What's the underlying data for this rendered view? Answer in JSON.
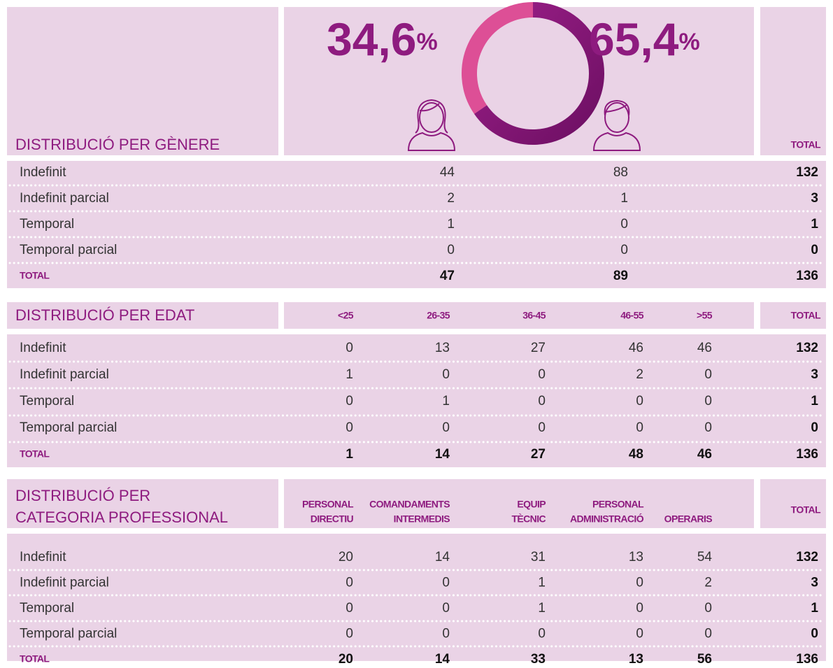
{
  "unit": "%",
  "gender": {
    "title": "DISTRIBUCIÓ PER GÈNERE",
    "female": {
      "value": 34.6,
      "label": "34,6"
    },
    "male": {
      "value": 65.4,
      "label": "65,4"
    },
    "total_header": "TOTAL",
    "rows": [
      {
        "label": "Indefinit",
        "values": [
          44,
          88
        ],
        "total": 132
      },
      {
        "label": "Indefinit parcial",
        "values": [
          2,
          1
        ],
        "total": 3
      },
      {
        "label": "Temporal",
        "values": [
          1,
          0
        ],
        "total": 1
      },
      {
        "label": "Temporal parcial",
        "values": [
          0,
          0
        ],
        "total": 0
      }
    ],
    "total_row": {
      "label": "TOTAL",
      "values": [
        47,
        89
      ],
      "total": 136
    }
  },
  "age": {
    "title": "DISTRIBUCIÓ PER EDAT",
    "columns": [
      "<25",
      "26-35",
      "36-45",
      "46-55",
      ">55"
    ],
    "total_header": "TOTAL",
    "rows": [
      {
        "label": "Indefinit",
        "values": [
          0,
          13,
          27,
          46,
          46
        ],
        "total": 132
      },
      {
        "label": "Indefinit parcial",
        "values": [
          1,
          0,
          0,
          2,
          0
        ],
        "total": 3
      },
      {
        "label": "Temporal",
        "values": [
          0,
          1,
          0,
          0,
          0
        ],
        "total": 1
      },
      {
        "label": "Temporal parcial",
        "values": [
          0,
          0,
          0,
          0,
          0
        ],
        "total": 0
      }
    ],
    "total_row": {
      "label": "TOTAL",
      "values": [
        1,
        14,
        27,
        48,
        46
      ],
      "total": 136
    }
  },
  "category": {
    "title": [
      "DISTRIBUCIÓ PER",
      "CATEGORIA PROFESSIONAL"
    ],
    "columns": [
      [
        "PERSONAL",
        "DIRECTIU"
      ],
      [
        "COMANDAMENTS",
        "INTERMEDIS"
      ],
      [
        "EQUIP",
        "TÈCNIC"
      ],
      [
        "PERSONAL",
        "ADMINISTRACIÓ"
      ],
      [
        "OPERARIS"
      ]
    ],
    "total_header": "TOTAL",
    "rows": [
      {
        "label": "Indefinit",
        "values": [
          20,
          14,
          31,
          13,
          54
        ],
        "total": 132
      },
      {
        "label": "Indefinit parcial",
        "values": [
          0,
          0,
          1,
          0,
          2
        ],
        "total": 3
      },
      {
        "label": "Temporal",
        "values": [
          0,
          0,
          1,
          0,
          0
        ],
        "total": 1
      },
      {
        "label": "Temporal parcial",
        "values": [
          0,
          0,
          0,
          0,
          0
        ],
        "total": 0
      }
    ],
    "total_row": {
      "label": "TOTAL",
      "values": [
        20,
        14,
        33,
        13,
        56
      ],
      "total": 136
    }
  }
}
